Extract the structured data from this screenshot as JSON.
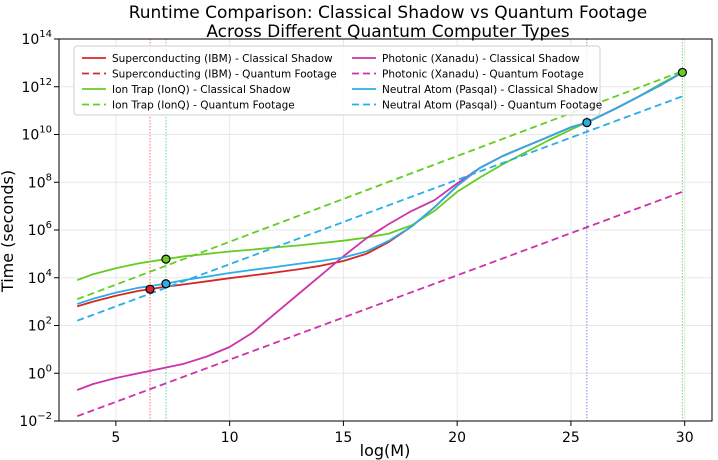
{
  "chart_data": {
    "type": "line",
    "title_lines": [
      "Runtime Comparison: Classical Shadow vs Quantum Footage",
      "Across Different Quantum Computer Types"
    ],
    "xlabel": "log(M)",
    "ylabel": "Time (seconds)",
    "xlim": [
      2.5,
      31.2
    ],
    "ylim_log10": [
      -2,
      14
    ],
    "y_scale": "log",
    "x_ticks": [
      5,
      10,
      15,
      20,
      25,
      30
    ],
    "y_tick_exponents": [
      -2,
      0,
      2,
      4,
      6,
      8,
      10,
      12,
      14
    ],
    "grid": true,
    "legend_position": "top-left",
    "series": [
      {
        "name": "Superconducting (IBM) - Classical Shadow",
        "color": "#d62728",
        "style": "solid",
        "x": [
          3.3,
          4,
          5,
          6,
          6.5,
          7,
          8,
          9,
          10,
          11,
          12,
          13,
          14,
          15,
          16,
          17,
          18,
          19,
          20,
          21,
          22,
          23,
          24,
          25,
          25.7,
          27,
          28,
          29,
          29.9
        ],
        "log10_y": [
          2.8,
          3.0,
          3.25,
          3.45,
          3.52,
          3.6,
          3.72,
          3.85,
          3.98,
          4.1,
          4.22,
          4.35,
          4.5,
          4.7,
          5.0,
          5.5,
          6.15,
          6.95,
          7.85,
          8.6,
          9.1,
          9.5,
          9.9,
          10.3,
          10.5,
          11.1,
          11.6,
          12.1,
          12.6
        ]
      },
      {
        "name": "Superconducting (IBM) - Quantum Footage",
        "color": "#d62728",
        "style": "dashed",
        "x": [],
        "log10_y": []
      },
      {
        "name": "Ion Trap (IonQ) - Classical Shadow",
        "color": "#66cc22",
        "style": "solid",
        "x": [
          3.3,
          4,
          5,
          6,
          7,
          7.2,
          8,
          9,
          10,
          11,
          12,
          13,
          14,
          15,
          16,
          17,
          18,
          19,
          20,
          21,
          22,
          23,
          24,
          25,
          26,
          27,
          28,
          29,
          29.9
        ],
        "log10_y": [
          3.9,
          4.15,
          4.4,
          4.6,
          4.75,
          4.78,
          4.9,
          5.0,
          5.1,
          5.18,
          5.27,
          5.35,
          5.45,
          5.55,
          5.68,
          5.85,
          6.2,
          6.8,
          7.6,
          8.2,
          8.75,
          9.25,
          9.75,
          10.2,
          10.65,
          11.1,
          11.6,
          12.15,
          12.6
        ]
      },
      {
        "name": "Ion Trap (IonQ) - Quantum Footage",
        "color": "#66cc22",
        "style": "dashed",
        "x": [
          3.3,
          29.9
        ],
        "log10_y": [
          3.1,
          12.65
        ]
      },
      {
        "name": "Photonic (Xanadu) - Classical Shadow",
        "color": "#cc33aa",
        "style": "solid",
        "x": [
          3.3,
          4,
          5,
          6,
          7,
          8,
          9,
          10,
          11,
          12,
          13,
          14,
          15,
          16,
          17,
          18,
          19,
          20,
          21,
          22,
          23,
          24,
          25,
          25.7,
          27,
          28,
          29,
          29.9
        ],
        "log10_y": [
          -0.7,
          -0.45,
          -0.2,
          0.0,
          0.2,
          0.4,
          0.7,
          1.1,
          1.7,
          2.5,
          3.3,
          4.1,
          4.9,
          5.65,
          6.25,
          6.8,
          7.25,
          7.95,
          8.6,
          9.1,
          9.5,
          9.9,
          10.3,
          10.5,
          11.1,
          11.6,
          12.1,
          12.6
        ]
      },
      {
        "name": "Photonic (Xanadu) - Quantum Footage",
        "color": "#cc33aa",
        "style": "dashed",
        "x": [
          3.3,
          29.9
        ],
        "log10_y": [
          -1.8,
          7.6
        ]
      },
      {
        "name": "Neutral Atom (Pasqal) - Classical Shadow",
        "color": "#29aee6",
        "style": "solid",
        "x": [
          3.3,
          4,
          5,
          6,
          7,
          7.2,
          8,
          9,
          10,
          11,
          12,
          13,
          14,
          15,
          16,
          17,
          18,
          19,
          20,
          21,
          22,
          23,
          24,
          25,
          25.7,
          27,
          28,
          29,
          29.9
        ],
        "log10_y": [
          2.9,
          3.12,
          3.38,
          3.58,
          3.72,
          3.75,
          3.9,
          4.05,
          4.2,
          4.33,
          4.45,
          4.58,
          4.7,
          4.85,
          5.1,
          5.55,
          6.15,
          6.95,
          7.85,
          8.6,
          9.1,
          9.5,
          9.9,
          10.3,
          10.5,
          11.1,
          11.6,
          12.1,
          12.6
        ]
      },
      {
        "name": "Neutral Atom (Pasqal) - Quantum Footage",
        "color": "#29aee6",
        "style": "dashed",
        "x": [
          3.3,
          29.9
        ],
        "log10_y": [
          2.2,
          11.6
        ]
      }
    ],
    "crossings": [
      {
        "x": 6.5,
        "log10_y": 3.52,
        "color": "#d62728"
      },
      {
        "x": 7.2,
        "log10_y": 4.78,
        "color": "#66cc22"
      },
      {
        "x": 7.2,
        "log10_y": 3.75,
        "color": "#29aee6"
      },
      {
        "x": 25.7,
        "log10_y": 10.5,
        "color": "#29aee6"
      },
      {
        "x": 29.9,
        "log10_y": 12.6,
        "color": "#66cc22"
      }
    ],
    "vertical_markers": [
      {
        "x": 6.5,
        "color": "#ff7070"
      },
      {
        "x": 7.2,
        "color": "#5ed6a0"
      },
      {
        "x": 25.7,
        "color": "#6f8fe0"
      },
      {
        "x": 29.9,
        "color": "#6ee06e"
      }
    ]
  }
}
